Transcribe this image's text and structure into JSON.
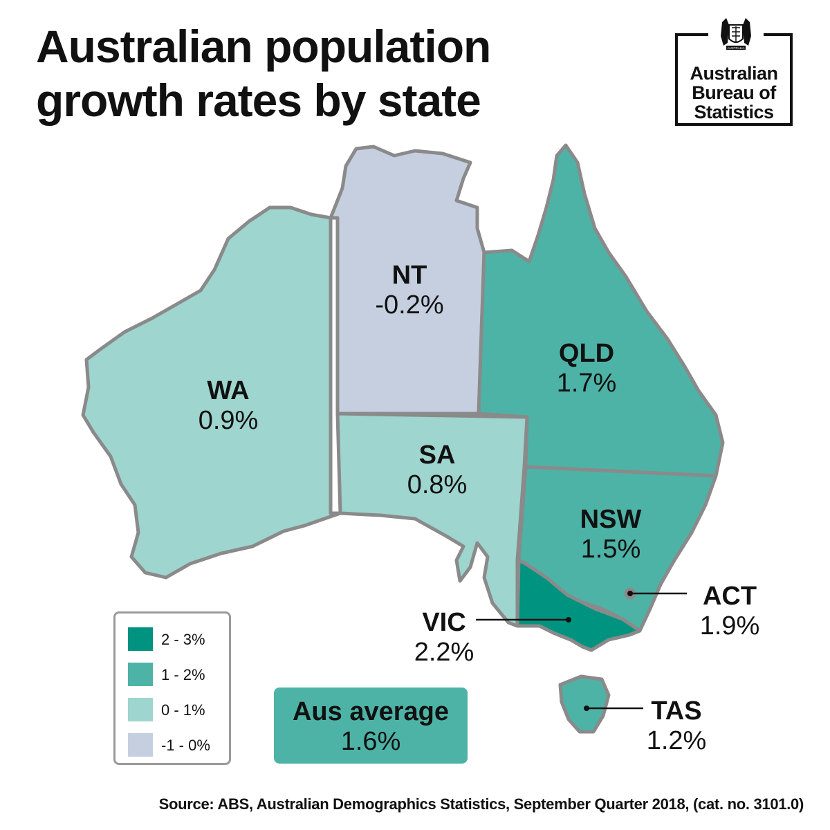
{
  "title": "Australian population\ngrowth rates by state",
  "logo": {
    "org_name": "Australian\nBureau of\nStatistics",
    "crest_text": "AUSTRALIA"
  },
  "colors": {
    "band_2_3": "#00937f",
    "band_1_2": "#4db3a6",
    "band_0_1": "#9ed5ce",
    "band_neg1_0": "#c5cfe0",
    "border": "#8a8a8a"
  },
  "states": [
    {
      "code": "WA",
      "rate": "0.9%",
      "band": "0 - 1%"
    },
    {
      "code": "NT",
      "rate": "-0.2%",
      "band": "-1 - 0%"
    },
    {
      "code": "QLD",
      "rate": "1.7%",
      "band": "1 - 2%"
    },
    {
      "code": "SA",
      "rate": "0.8%",
      "band": "0 - 1%"
    },
    {
      "code": "NSW",
      "rate": "1.5%",
      "band": "1 - 2%"
    },
    {
      "code": "ACT",
      "rate": "1.9%",
      "band": "1 - 2%"
    },
    {
      "code": "VIC",
      "rate": "2.2%",
      "band": "2 - 3%"
    },
    {
      "code": "TAS",
      "rate": "1.2%",
      "band": "1 - 2%"
    }
  ],
  "legend": [
    {
      "label": "2 - 3%",
      "color": "#00937f"
    },
    {
      "label": "1 - 2%",
      "color": "#4db3a6"
    },
    {
      "label": "0 - 1%",
      "color": "#9ed5ce"
    },
    {
      "label": "-1 - 0%",
      "color": "#c5cfe0"
    }
  ],
  "average": {
    "label": "Aus average",
    "value": "1.6%"
  },
  "source": "Source: ABS, Australian Demographics Statistics, September Quarter 2018, (cat. no. 3101.0)"
}
